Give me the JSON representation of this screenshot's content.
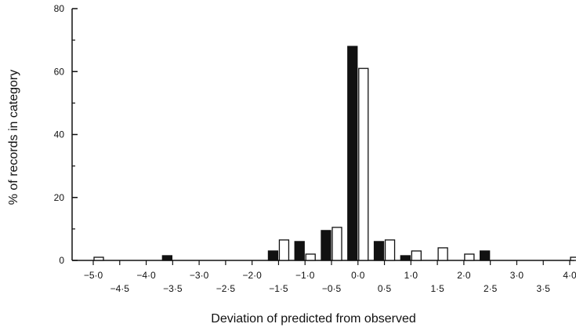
{
  "chart_data": {
    "type": "bar",
    "xlabel": "Deviation of predicted from observed",
    "ylabel": "% of records in category",
    "ylim": [
      0,
      80
    ],
    "yticks": [
      0,
      20,
      40,
      60,
      80
    ],
    "ytick_labels": [
      "0",
      "20",
      "40",
      "60",
      "80"
    ],
    "xlim": [
      -5.0,
      4.0
    ],
    "xticks_upper": [
      {
        "x": -5.0,
        "label": "−5·0"
      },
      {
        "x": -4.0,
        "label": "−4·0"
      },
      {
        "x": -3.0,
        "label": "−3·0"
      },
      {
        "x": -2.0,
        "label": "−2·0"
      },
      {
        "x": -1.0,
        "label": "−1·0"
      },
      {
        "x": 0.0,
        "label": "0·0"
      },
      {
        "x": 1.0,
        "label": "1·0"
      },
      {
        "x": 2.0,
        "label": "2·0"
      },
      {
        "x": 3.0,
        "label": "3·0"
      },
      {
        "x": 4.0,
        "label": "4·0"
      }
    ],
    "xticks_lower": [
      {
        "x": -4.5,
        "label": "−4·5"
      },
      {
        "x": -3.5,
        "label": "−3·5"
      },
      {
        "x": -2.5,
        "label": "−2·5"
      },
      {
        "x": -1.5,
        "label": "−1·5"
      },
      {
        "x": -0.5,
        "label": "−0·5"
      },
      {
        "x": 0.5,
        "label": "0·5"
      },
      {
        "x": 1.5,
        "label": "1·5"
      },
      {
        "x": 2.5,
        "label": "2·5"
      },
      {
        "x": 3.5,
        "label": "3·5"
      }
    ],
    "series": [
      {
        "fill": "#111111",
        "points": [
          {
            "x": -3.5,
            "y": 1.5
          },
          {
            "x": -1.5,
            "y": 3.0
          },
          {
            "x": -1.0,
            "y": 6.0
          },
          {
            "x": -0.5,
            "y": 9.5
          },
          {
            "x": 0.0,
            "y": 68.0
          },
          {
            "x": 0.5,
            "y": 6.0
          },
          {
            "x": 1.0,
            "y": 1.5
          },
          {
            "x": 2.5,
            "y": 3.0
          }
        ]
      },
      {
        "fill": "#ffffff",
        "points": [
          {
            "x": -5.0,
            "y": 1.0
          },
          {
            "x": -1.5,
            "y": 6.5
          },
          {
            "x": -1.0,
            "y": 2.0
          },
          {
            "x": -0.5,
            "y": 10.5
          },
          {
            "x": 0.0,
            "y": 61.0
          },
          {
            "x": 0.5,
            "y": 6.5
          },
          {
            "x": 1.0,
            "y": 3.0
          },
          {
            "x": 1.5,
            "y": 4.0
          },
          {
            "x": 2.0,
            "y": 2.0
          },
          {
            "x": 4.0,
            "y": 1.0
          }
        ]
      }
    ],
    "grid": false,
    "legend": "none"
  }
}
